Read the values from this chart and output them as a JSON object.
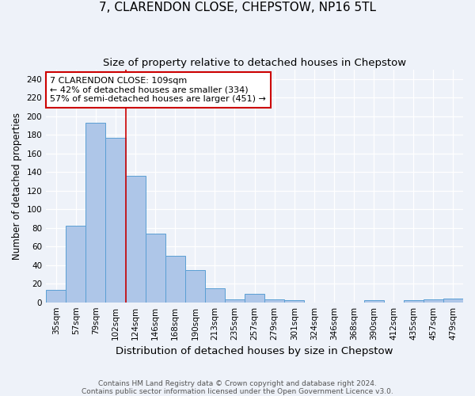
{
  "title1": "7, CLARENDON CLOSE, CHEPSTOW, NP16 5TL",
  "title2": "Size of property relative to detached houses in Chepstow",
  "xlabel": "Distribution of detached houses by size in Chepstow",
  "ylabel": "Number of detached properties",
  "categories": [
    "35sqm",
    "57sqm",
    "79sqm",
    "102sqm",
    "124sqm",
    "146sqm",
    "168sqm",
    "190sqm",
    "213sqm",
    "235sqm",
    "257sqm",
    "279sqm",
    "301sqm",
    "324sqm",
    "346sqm",
    "368sqm",
    "390sqm",
    "412sqm",
    "435sqm",
    "457sqm",
    "479sqm"
  ],
  "values": [
    13,
    82,
    193,
    177,
    136,
    74,
    50,
    35,
    15,
    3,
    9,
    3,
    2,
    0,
    0,
    0,
    2,
    0,
    2,
    3,
    4
  ],
  "bar_color": "#aec6e8",
  "bar_edge_color": "#5a9fd4",
  "vline_x": 3.5,
  "vline_color": "#cc0000",
  "annotation_text": "7 CLARENDON CLOSE: 109sqm\n← 42% of detached houses are smaller (334)\n57% of semi-detached houses are larger (451) →",
  "annotation_box_color": "#ffffff",
  "annotation_box_edge": "#cc0000",
  "ylim": [
    0,
    250
  ],
  "yticks": [
    0,
    20,
    40,
    60,
    80,
    100,
    120,
    140,
    160,
    180,
    200,
    220,
    240
  ],
  "footer": "Contains HM Land Registry data © Crown copyright and database right 2024.\nContains public sector information licensed under the Open Government Licence v3.0.",
  "bg_color": "#eef2f9",
  "plot_bg": "#eef2f9",
  "title1_fontsize": 11,
  "title2_fontsize": 9.5,
  "xlabel_fontsize": 9.5,
  "ylabel_fontsize": 8.5,
  "footer_fontsize": 6.5,
  "tick_fontsize": 7.5,
  "annot_fontsize": 8
}
